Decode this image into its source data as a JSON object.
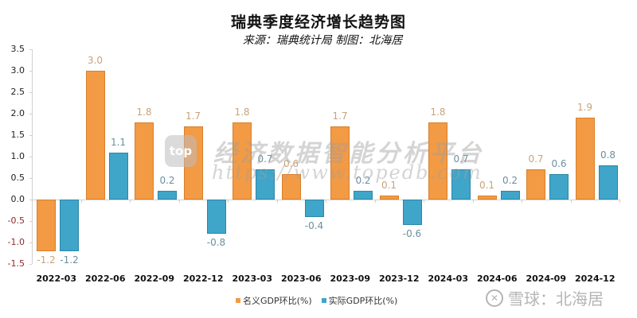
{
  "header": {
    "title": "瑞典季度经济增长趋势图",
    "subtitle": "来源：瑞典统计局 制图：北海居"
  },
  "watermark": {
    "logo_text": "top",
    "text": "经济数据智能分析平台",
    "url": "https://www.topedb.com"
  },
  "footer_watermark": {
    "icon": "snowball-icon",
    "text": "雪球：北海居"
  },
  "colors": {
    "nominal": "#f39a44",
    "real": "#3fa5c9"
  },
  "chart_data": {
    "type": "bar",
    "title": "瑞典季度经济增长趋势图",
    "subtitle": "来源：瑞典统计局 制图：北海居",
    "xlabel": "",
    "ylabel": "",
    "ylim": [
      -1.5,
      3.5
    ],
    "yticks": [
      "3.5",
      "3.0",
      "2.5",
      "2.0",
      "1.5",
      "1.0",
      "0.5",
      "0.0",
      "-0.5",
      "-1.0",
      "-1.5"
    ],
    "grid": false,
    "legend_position": "bottom",
    "categories": [
      "2022-03",
      "2022-06",
      "2022-09",
      "2022-12",
      "2023-03",
      "2023-06",
      "2023-09",
      "2023-12",
      "2024-03",
      "2024-06",
      "2024-09",
      "2024-12"
    ],
    "series": [
      {
        "name": "名义GDP环比(%)",
        "color": "#f39a44",
        "values": [
          -1.2,
          3.0,
          1.8,
          1.7,
          1.8,
          0.6,
          1.7,
          0.1,
          1.8,
          0.1,
          0.7,
          1.9
        ]
      },
      {
        "name": "实际GDP环比(%)",
        "color": "#3fa5c9",
        "values": [
          -1.2,
          1.1,
          0.2,
          -0.8,
          0.7,
          -0.4,
          0.2,
          -0.6,
          0.7,
          0.2,
          0.6,
          0.8
        ]
      }
    ]
  }
}
